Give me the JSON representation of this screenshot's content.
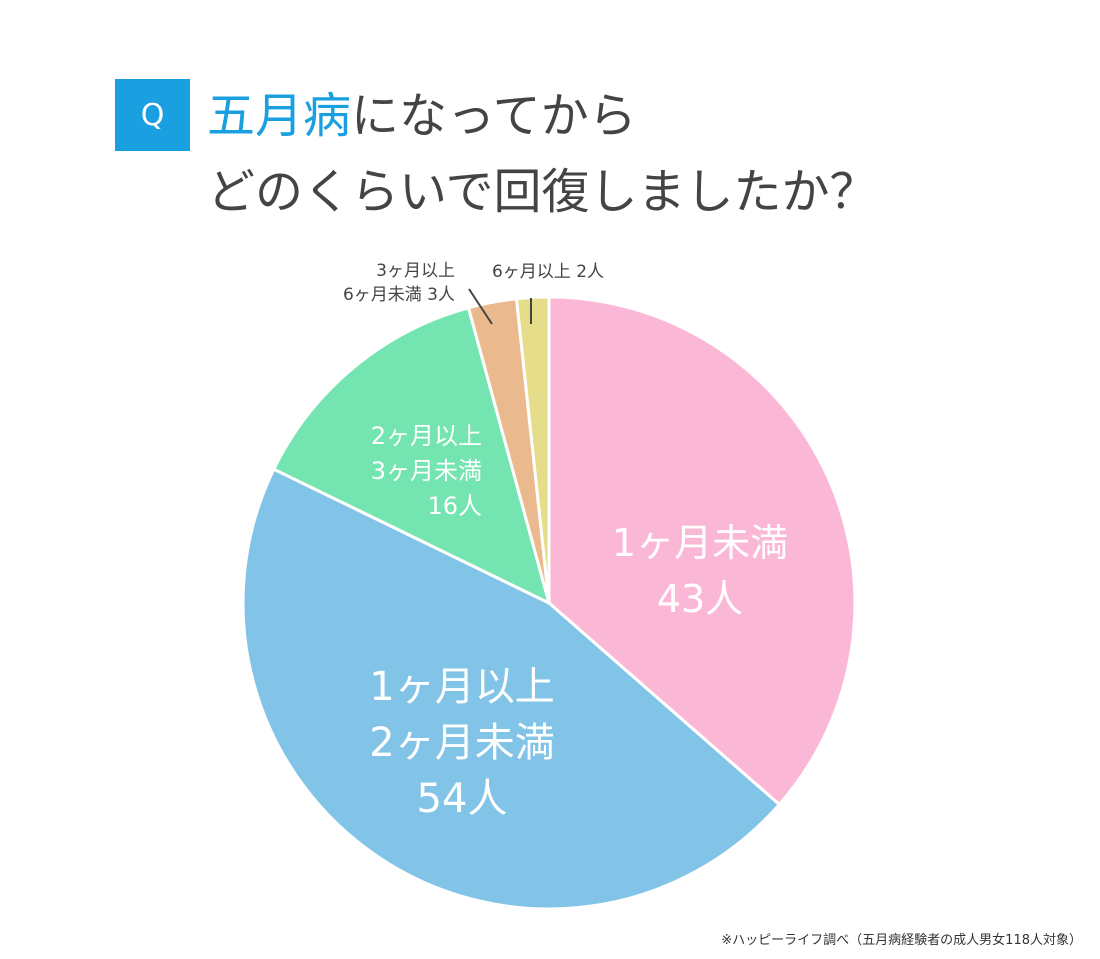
{
  "question": {
    "badge": "Q",
    "title_highlight": "五月病",
    "title_rest_line1": "になってから",
    "title_line2": "どのくらいで回復しましたか？"
  },
  "note": "※ハッピーライフ調べ（五月病経験者の成人男女118人対象）",
  "chart_data": {
    "type": "pie",
    "title": "五月病になってからどのくらいで回復しましたか？",
    "total": 118,
    "slices": [
      {
        "label_lines": [
          "1ヶ月未満",
          "43人"
        ],
        "value": 43,
        "color": "#fbb8d6"
      },
      {
        "label_lines": [
          "1ヶ月以上",
          "2ヶ月未満",
          "54人"
        ],
        "value": 54,
        "color": "#82c4e7"
      },
      {
        "label_lines": [
          "2ヶ月以上",
          "3ヶ月未満",
          "16人"
        ],
        "value": 16,
        "color": "#74e5b1"
      },
      {
        "label_lines": [
          "3ヶ月以上",
          "6ヶ月未満 3人"
        ],
        "value": 3,
        "color": "#ebb98e"
      },
      {
        "label_lines": [
          "6ヶ月以上 2人"
        ],
        "value": 2,
        "color": "#e6dd8b"
      }
    ]
  }
}
